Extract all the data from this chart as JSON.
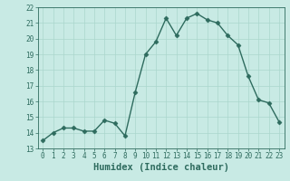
{
  "title": "",
  "xlabel": "Humidex (Indice chaleur)",
  "ylabel": "",
  "x": [
    0,
    1,
    2,
    3,
    4,
    5,
    6,
    7,
    8,
    9,
    10,
    11,
    12,
    13,
    14,
    15,
    16,
    17,
    18,
    19,
    20,
    21,
    22,
    23
  ],
  "y": [
    13.5,
    14.0,
    14.3,
    14.3,
    14.1,
    14.1,
    14.8,
    14.6,
    13.8,
    16.6,
    19.0,
    19.8,
    21.3,
    20.2,
    21.3,
    21.6,
    21.2,
    21.0,
    20.2,
    19.6,
    17.6,
    16.1,
    15.9,
    14.7
  ],
  "line_color": "#2e6b5e",
  "marker": "D",
  "marker_size": 2.5,
  "line_width": 1.0,
  "ylim": [
    13,
    22
  ],
  "xlim": [
    -0.5,
    23.5
  ],
  "yticks": [
    13,
    14,
    15,
    16,
    17,
    18,
    19,
    20,
    21,
    22
  ],
  "xticks": [
    0,
    1,
    2,
    3,
    4,
    5,
    6,
    7,
    8,
    9,
    10,
    11,
    12,
    13,
    14,
    15,
    16,
    17,
    18,
    19,
    20,
    21,
    22,
    23
  ],
  "bg_color": "#c8eae4",
  "grid_color": "#aad6cc",
  "tick_fontsize": 5.5,
  "xlabel_fontsize": 7.5
}
